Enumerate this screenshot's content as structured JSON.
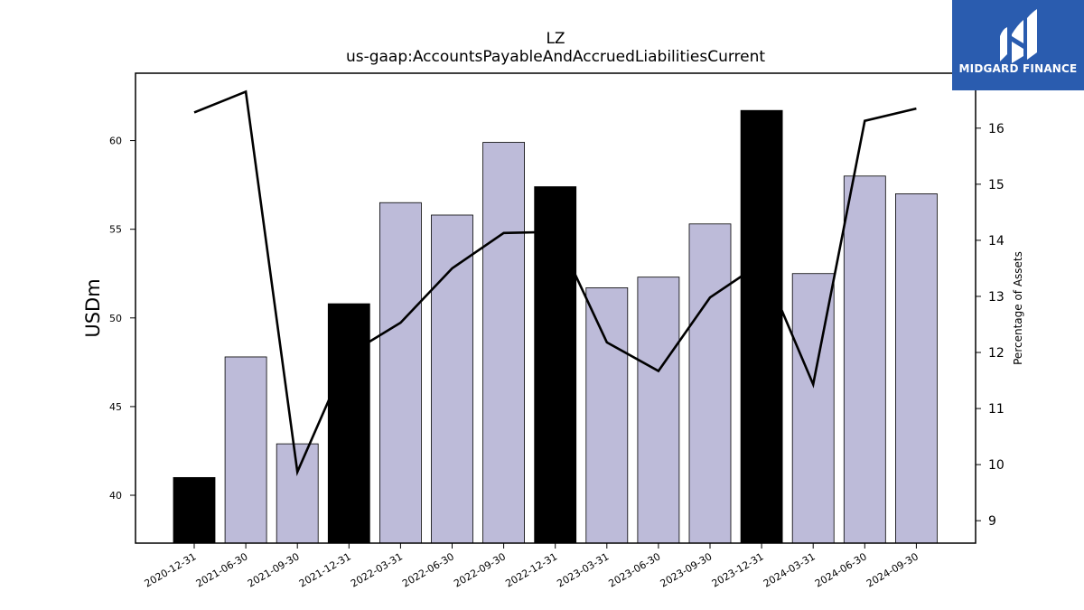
{
  "chart_data": {
    "type": "bar",
    "title": "LZ",
    "subtitle": "us-gaap:AccountsPayableAndAccruedLiabilitiesCurrent",
    "ylabel": "USDm",
    "y2label": "Percentage of Assets",
    "categories": [
      "2020-12-31",
      "2021-06-30",
      "2021-09-30",
      "2021-12-31",
      "2022-03-31",
      "2022-06-30",
      "2022-09-30",
      "2022-12-31",
      "2023-03-31",
      "2023-06-30",
      "2023-09-30",
      "2023-12-31",
      "2024-03-31",
      "2024-06-30",
      "2024-09-30"
    ],
    "series": [
      {
        "type": "bar",
        "axis": "left",
        "values": [
          41.0,
          47.8,
          42.9,
          50.8,
          56.5,
          55.8,
          59.9,
          57.4,
          51.7,
          52.3,
          55.3,
          61.7,
          52.5,
          58.0,
          57.0
        ],
        "highlight": [
          true,
          false,
          false,
          true,
          false,
          false,
          false,
          true,
          false,
          false,
          false,
          true,
          false,
          false,
          false
        ]
      },
      {
        "type": "line",
        "axis": "right",
        "values": [
          16.28,
          16.65,
          9.87,
          11.97,
          12.53,
          13.5,
          14.13,
          14.15,
          12.18,
          11.67,
          12.98,
          13.6,
          11.43,
          16.13,
          16.35
        ]
      }
    ],
    "ylim": [
      37.3,
      63.8
    ],
    "yticks": [
      40,
      45,
      50,
      55,
      60
    ],
    "y2lim": [
      8.6,
      16.98
    ],
    "y2ticks": [
      9,
      10,
      11,
      12,
      13,
      14,
      15,
      16
    ],
    "colors": {
      "bar": "#bdbbd9",
      "bar_highlight": "#000000",
      "line": "#000000"
    },
    "grid": false,
    "legend": "none"
  },
  "logo": {
    "text": "MIDGARD FINANCE",
    "background": "#2a5caf"
  }
}
